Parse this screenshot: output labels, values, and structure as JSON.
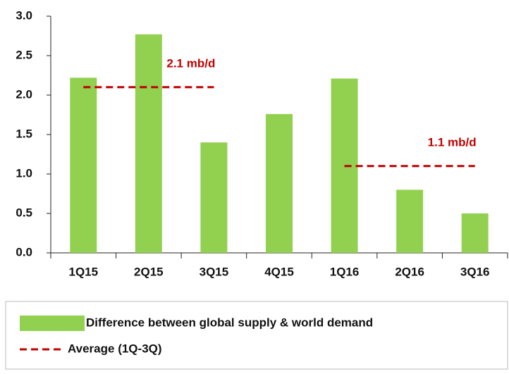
{
  "chart_data": {
    "type": "bar",
    "categories": [
      "1Q15",
      "2Q15",
      "3Q15",
      "4Q15",
      "1Q16",
      "2Q16",
      "3Q16"
    ],
    "series": [
      {
        "name": "Difference between global supply & world demand",
        "color": "#92d050",
        "values": [
          2.22,
          2.77,
          1.4,
          1.76,
          2.21,
          0.8,
          0.5
        ]
      },
      {
        "name": "Average (1Q-3Q)",
        "color": "#c00000",
        "type": "line",
        "dashed": true,
        "values": [
          2.1,
          2.1,
          2.1,
          null,
          1.1,
          1.1,
          1.1
        ],
        "value_labels": [
          null,
          "2.1 mb/d",
          null,
          null,
          null,
          "1.1 mb/d",
          null
        ]
      }
    ],
    "ylim": [
      0,
      3
    ],
    "yticks": [
      {
        "value": 0,
        "label": "0.0"
      },
      {
        "value": 0.5,
        "label": "0.5"
      },
      {
        "value": 1,
        "label": "1.0"
      },
      {
        "value": 1.5,
        "label": "1.5"
      },
      {
        "value": 2,
        "label": "2.0"
      },
      {
        "value": 2.5,
        "label": "2.5"
      },
      {
        "value": 3,
        "label": "3.0"
      }
    ],
    "grid": false
  }
}
